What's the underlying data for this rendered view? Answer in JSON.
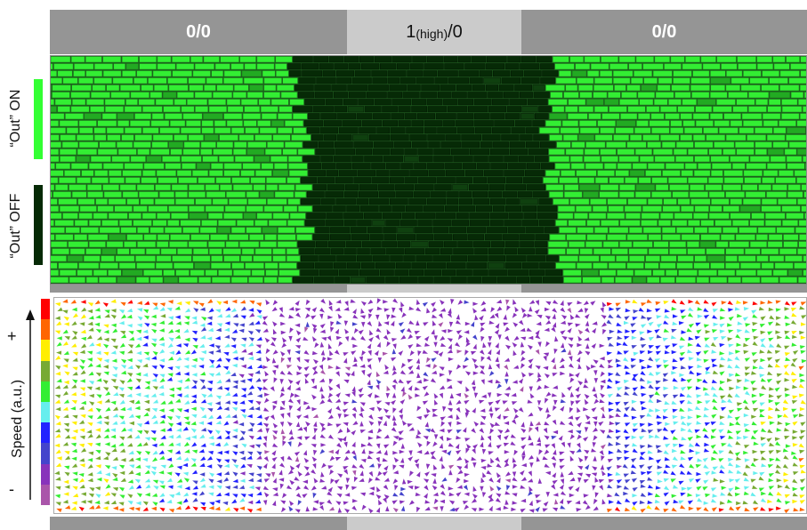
{
  "top_bands": [
    {
      "label": "0/0"
    },
    {
      "label_main": "1",
      "label_sub": "(high)",
      "label_tail": "/0"
    },
    {
      "label": "0/0"
    }
  ],
  "legend_top": {
    "on_label": "“Out” ON",
    "off_label": "“Out” OFF",
    "on_color": "#33ff33",
    "off_color": "#062a06"
  },
  "legend_speed": {
    "axis_label": "Speed (a.u.)",
    "plus": "+",
    "minus": "-",
    "scale_colors": [
      "#ff0000",
      "#ff6600",
      "#ffee00",
      "#77aa33",
      "#33ee33",
      "#66eeee",
      "#2222ff",
      "#4444cc",
      "#8833bb",
      "#aa55aa"
    ]
  },
  "colors": {
    "cell_on": "#33ee33",
    "cell_off": "#062a06",
    "band_dark": "#959595",
    "band_light": "#cbcbcb"
  }
}
